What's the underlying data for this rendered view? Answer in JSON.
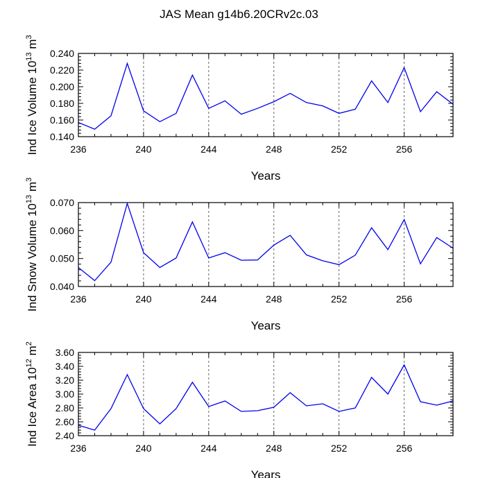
{
  "title": "JAS Mean g14b6.20CRv2c.03",
  "chart_data": [
    {
      "type": "line",
      "ylabel": "Ind Ice Volume 10",
      "ylabel_sup": "13",
      "ylabel_unit": " m",
      "ylabel_unit_sup": "3",
      "xlabel": "Years",
      "xlim": [
        236,
        259
      ],
      "ylim": [
        0.14,
        0.24
      ],
      "yticks": [
        0.14,
        0.16,
        0.18,
        0.2,
        0.22,
        0.24
      ],
      "ytick_labels": [
        "0.140",
        "0.160",
        "0.180",
        "0.200",
        "0.220",
        "0.240"
      ],
      "xticks": [
        236,
        240,
        244,
        248,
        252,
        256
      ],
      "xtick_labels": [
        "236",
        "240",
        "244",
        "248",
        "252",
        "256"
      ],
      "x": [
        236,
        237,
        238,
        239,
        240,
        241,
        242,
        243,
        244,
        245,
        246,
        247,
        248,
        249,
        250,
        251,
        252,
        253,
        254,
        255,
        256,
        257,
        258,
        259
      ],
      "values": [
        0.157,
        0.149,
        0.165,
        0.228,
        0.171,
        0.158,
        0.168,
        0.214,
        0.174,
        0.183,
        0.167,
        0.174,
        0.182,
        0.192,
        0.181,
        0.177,
        0.168,
        0.173,
        0.207,
        0.181,
        0.223,
        0.17,
        0.194,
        0.179
      ],
      "line_color": "#0000ee"
    },
    {
      "type": "line",
      "ylabel": "Ind Snow Volume 10",
      "ylabel_sup": "13",
      "ylabel_unit": " m",
      "ylabel_unit_sup": "3",
      "xlabel": "Years",
      "xlim": [
        236,
        259
      ],
      "ylim": [
        0.04,
        0.07
      ],
      "yticks": [
        0.04,
        0.05,
        0.06,
        0.07
      ],
      "ytick_labels": [
        "0.040",
        "0.050",
        "0.060",
        "0.070"
      ],
      "xticks": [
        236,
        240,
        244,
        248,
        252,
        256
      ],
      "xtick_labels": [
        "236",
        "240",
        "244",
        "248",
        "252",
        "256"
      ],
      "x": [
        236,
        237,
        238,
        239,
        240,
        241,
        242,
        243,
        244,
        245,
        246,
        247,
        248,
        249,
        250,
        251,
        252,
        253,
        254,
        255,
        256,
        257,
        258,
        259
      ],
      "values": [
        0.0468,
        0.0421,
        0.0487,
        0.0697,
        0.0521,
        0.0468,
        0.0502,
        0.0631,
        0.0502,
        0.0521,
        0.0494,
        0.0495,
        0.0548,
        0.0583,
        0.0513,
        0.0492,
        0.0478,
        0.0512,
        0.061,
        0.0532,
        0.0639,
        0.0481,
        0.0575,
        0.0537
      ],
      "line_color": "#0000ee"
    },
    {
      "type": "line",
      "ylabel": "Ind Ice Area 10",
      "ylabel_sup": "12",
      "ylabel_unit": " m",
      "ylabel_unit_sup": "2",
      "xlabel": "Years",
      "xlim": [
        236,
        259
      ],
      "ylim": [
        2.4,
        3.6
      ],
      "yticks": [
        2.4,
        2.6,
        2.8,
        3.0,
        3.2,
        3.4,
        3.6
      ],
      "ytick_labels": [
        "2.40",
        "2.60",
        "2.80",
        "3.00",
        "3.20",
        "3.40",
        "3.60"
      ],
      "xticks": [
        236,
        240,
        244,
        248,
        252,
        256
      ],
      "xtick_labels": [
        "236",
        "240",
        "244",
        "248",
        "252",
        "256"
      ],
      "x": [
        236,
        237,
        238,
        239,
        240,
        241,
        242,
        243,
        244,
        245,
        246,
        247,
        248,
        249,
        250,
        251,
        252,
        253,
        254,
        255,
        256,
        257,
        258,
        259
      ],
      "values": [
        2.55,
        2.48,
        2.79,
        3.28,
        2.79,
        2.57,
        2.79,
        3.17,
        2.82,
        2.9,
        2.75,
        2.76,
        2.81,
        3.02,
        2.83,
        2.86,
        2.75,
        2.8,
        3.24,
        3.0,
        3.42,
        2.89,
        2.84,
        2.9
      ],
      "line_color": "#0000ee"
    }
  ]
}
